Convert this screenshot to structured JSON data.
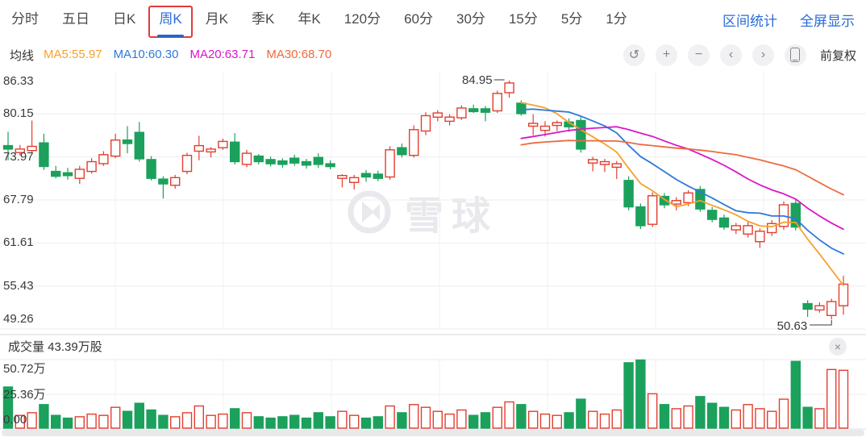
{
  "toolbar": {
    "tabs": [
      {
        "label": "分时",
        "active": false
      },
      {
        "label": "五日",
        "active": false
      },
      {
        "label": "日K",
        "active": false
      },
      {
        "label": "周K",
        "active": true,
        "highlighted": true
      },
      {
        "label": "月K",
        "active": false
      },
      {
        "label": "季K",
        "active": false
      },
      {
        "label": "年K",
        "active": false
      },
      {
        "label": "120分",
        "active": false
      },
      {
        "label": "60分",
        "active": false
      },
      {
        "label": "30分",
        "active": false
      },
      {
        "label": "15分",
        "active": false
      },
      {
        "label": "5分",
        "active": false
      },
      {
        "label": "1分",
        "active": false
      }
    ],
    "actions": [
      {
        "label": "区间统计"
      },
      {
        "label": "全屏显示"
      }
    ]
  },
  "legend": {
    "label": "均线",
    "items": [
      {
        "text": "MA5:55.97",
        "color": "#F5A12C"
      },
      {
        "text": "MA10:60.30",
        "color": "#2E79D9"
      },
      {
        "text": "MA20:63.71",
        "color": "#DC16C9"
      },
      {
        "text": "MA30:68.70",
        "color": "#EE6A3F"
      }
    ]
  },
  "controls": {
    "buttons": [
      {
        "name": "undo",
        "glyph": "↺"
      },
      {
        "name": "zoom-in",
        "glyph": "+"
      },
      {
        "name": "zoom-out",
        "glyph": "−"
      },
      {
        "name": "prev",
        "glyph": "‹"
      },
      {
        "name": "next",
        "glyph": "›"
      },
      {
        "name": "phone",
        "glyph": ""
      }
    ],
    "adjust_label": "前复权"
  },
  "watermark": {
    "text": "雪球"
  },
  "volume": {
    "header": "成交量 43.39万股",
    "y_axis_labels": [
      "50.72万",
      "25.36万",
      "0.00"
    ],
    "close_icon": "×"
  },
  "chart_data": {
    "type": "candlestick",
    "period": "周K",
    "y_axis_labels": [
      "86.33",
      "80.15",
      "73.97",
      "67.79",
      "61.61",
      "55.43",
      "49.26"
    ],
    "y_range": [
      49.26,
      86.33
    ],
    "grid": true,
    "up_color": "#E23E2F",
    "down_color": "#1BA15C",
    "volume_unit": "万股",
    "annotations": {
      "high": {
        "label": "84.95",
        "candle_index": 42
      },
      "low": {
        "label": "50.63",
        "candle_index": 69
      }
    },
    "moving_averages": {
      "periods": [
        5,
        10,
        20,
        30
      ],
      "colors": [
        "#F5A12C",
        "#2E79D9",
        "#DC16C9",
        "#EE6A3F"
      ],
      "legend_values": [
        55.97,
        60.3,
        63.71,
        68.7
      ],
      "draw_from_index": 43
    },
    "candles": [
      [
        75.6,
        77.6,
        73.5,
        75.1,
        31
      ],
      [
        74.6,
        75.7,
        74.2,
        75.1,
        10
      ],
      [
        74.9,
        79.2,
        74.6,
        75.5,
        12
      ],
      [
        76.0,
        77.3,
        72.1,
        72.6,
        18
      ],
      [
        71.9,
        72.7,
        70.9,
        71.2,
        10
      ],
      [
        71.7,
        72.4,
        70.7,
        71.3,
        8
      ],
      [
        70.9,
        72.7,
        70.1,
        72.2,
        9
      ],
      [
        71.9,
        73.8,
        71.6,
        73.3,
        11
      ],
      [
        73.0,
        74.8,
        72.7,
        74.3,
        10
      ],
      [
        74.1,
        77.3,
        73.8,
        76.4,
        16
      ],
      [
        76.4,
        78.4,
        74.5,
        75.9,
        13
      ],
      [
        77.5,
        79.0,
        73.3,
        73.7,
        19
      ],
      [
        73.6,
        74.1,
        70.6,
        70.9,
        14
      ],
      [
        70.8,
        71.2,
        68.0,
        70.1,
        10
      ],
      [
        69.9,
        71.4,
        69.4,
        71.0,
        9
      ],
      [
        71.9,
        74.6,
        71.5,
        74.2,
        12
      ],
      [
        74.8,
        77.0,
        73.5,
        75.6,
        17
      ],
      [
        74.7,
        75.4,
        73.9,
        75.1,
        10
      ],
      [
        75.3,
        76.6,
        75.0,
        76.2,
        11
      ],
      [
        76.1,
        77.4,
        72.9,
        73.3,
        15
      ],
      [
        72.9,
        75.0,
        72.5,
        74.5,
        12
      ],
      [
        74.1,
        74.4,
        72.9,
        73.3,
        9
      ],
      [
        73.6,
        74.0,
        72.6,
        73.0,
        8
      ],
      [
        73.4,
        73.8,
        72.4,
        72.9,
        9
      ],
      [
        73.8,
        74.3,
        72.7,
        73.1,
        10
      ],
      [
        73.3,
        73.7,
        72.3,
        72.8,
        8
      ],
      [
        73.9,
        74.5,
        72.4,
        72.9,
        12
      ],
      [
        73.0,
        73.5,
        72.2,
        72.6,
        9
      ],
      [
        70.9,
        71.5,
        69.6,
        71.3,
        13
      ],
      [
        70.3,
        71.4,
        69.3,
        71.0,
        10
      ],
      [
        71.6,
        72.1,
        70.4,
        71.1,
        8
      ],
      [
        71.5,
        72.0,
        70.5,
        70.9,
        9
      ],
      [
        71.1,
        75.5,
        70.7,
        75.0,
        17
      ],
      [
        75.3,
        75.9,
        73.9,
        74.3,
        12
      ],
      [
        74.2,
        78.5,
        73.9,
        77.9,
        18
      ],
      [
        77.7,
        80.4,
        77.1,
        79.9,
        16
      ],
      [
        79.7,
        80.7,
        79.1,
        80.3,
        13
      ],
      [
        79.1,
        80.1,
        78.5,
        79.7,
        11
      ],
      [
        79.6,
        81.4,
        79.3,
        81.0,
        14
      ],
      [
        80.9,
        81.5,
        80.3,
        80.5,
        10
      ],
      [
        80.9,
        81.3,
        79.1,
        80.4,
        12
      ],
      [
        80.6,
        83.5,
        80.3,
        83.1,
        16
      ],
      [
        83.2,
        84.95,
        82.5,
        84.6,
        20
      ],
      [
        81.7,
        82.1,
        79.9,
        80.2,
        18
      ],
      [
        78.4,
        80.1,
        77.1,
        78.8,
        13
      ],
      [
        77.8,
        79.1,
        76.9,
        78.4,
        11
      ],
      [
        78.5,
        79.2,
        77.7,
        78.9,
        10
      ],
      [
        79.0,
        79.5,
        77.6,
        78.3,
        12
      ],
      [
        79.2,
        79.7,
        74.6,
        75.1,
        22
      ],
      [
        73.1,
        74.0,
        71.9,
        73.6,
        13
      ],
      [
        72.9,
        73.7,
        71.8,
        73.3,
        11
      ],
      [
        72.5,
        73.4,
        70.8,
        73.0,
        14
      ],
      [
        70.6,
        71.2,
        66.3,
        66.8,
        49
      ],
      [
        66.8,
        67.3,
        63.6,
        64.1,
        51
      ],
      [
        64.3,
        68.9,
        63.9,
        68.4,
        26
      ],
      [
        68.3,
        68.8,
        66.6,
        67.1,
        18
      ],
      [
        67.2,
        68.2,
        66.3,
        67.7,
        15
      ],
      [
        67.4,
        69.2,
        66.9,
        68.8,
        17
      ],
      [
        69.3,
        69.8,
        66.1,
        66.5,
        24
      ],
      [
        66.3,
        66.8,
        64.6,
        65.0,
        19
      ],
      [
        65.2,
        65.7,
        63.5,
        63.9,
        16
      ],
      [
        63.5,
        64.5,
        62.9,
        64.1,
        14
      ],
      [
        62.9,
        64.6,
        62.4,
        64.1,
        18
      ],
      [
        61.8,
        63.7,
        60.9,
        63.3,
        15
      ],
      [
        63.1,
        64.9,
        62.6,
        64.4,
        13
      ],
      [
        64.0,
        67.6,
        63.5,
        67.1,
        22
      ],
      [
        67.3,
        67.8,
        63.4,
        63.9,
        50
      ],
      [
        52.9,
        53.4,
        51.0,
        52.1,
        16
      ],
      [
        52.0,
        53.1,
        51.6,
        52.6,
        15
      ],
      [
        51.2,
        53.6,
        50.63,
        53.2,
        44
      ],
      [
        52.6,
        56.9,
        51.3,
        55.7,
        43.39
      ]
    ]
  }
}
